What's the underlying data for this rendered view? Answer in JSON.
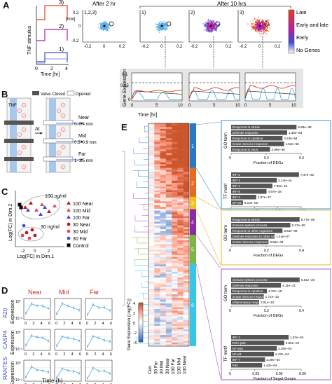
{
  "panels": {
    "A": "A",
    "B": "B",
    "C": "C",
    "D": "D",
    "E": "E"
  },
  "A": {
    "stim_ylabel": "TNF stimulus",
    "stim_xlabel": "Time [hr]",
    "stim_ticks": [
      "0",
      "2",
      "4"
    ],
    "stim_levels": [
      "3)",
      "2)",
      "1)"
    ],
    "after2": "After 2 hr",
    "after10": "After 10 hrs",
    "sc_labels": [
      "1,2,3)",
      "1)",
      "2)",
      "3)"
    ],
    "sc_yunit": "[mm]",
    "sc_xticks": [
      "-0.2",
      "0",
      "0.2"
    ],
    "sc_yticks": [
      "0.2",
      "0",
      "-0.2"
    ],
    "colorbar": [
      "Late",
      "Early and late",
      "Early",
      "No Genes"
    ],
    "ge_ylabel": "Gene Expression",
    "ge_xlabel": "Time [hr]",
    "ge_ticks": [
      "0",
      "5",
      "10"
    ],
    "ge_yticks": [
      "0.1",
      "0.05",
      "0"
    ]
  },
  "B": {
    "legend": [
      "Valve Closed",
      "Opened"
    ],
    "tnf": "TNF",
    "dt": "Δt",
    "near": "Near",
    "near_r": "0–0.4 mm",
    "mid": "Mid",
    "mid_r": "0.5–0.9 mm",
    "far": "Far",
    "far_r": "1–1.5 mm"
  },
  "C": {
    "ylabel": "Log(FC) in Dim.2",
    "xlabel": "Log(FC) in Dim.1",
    "ann100": "100 ng/ml",
    "ann30": "30 ng/ml",
    "ticks": [
      "-2",
      "0",
      "2"
    ],
    "legend": [
      "100 Near",
      "100 Mid",
      "100 Far",
      "30 Near",
      "30 Mid",
      "30 Far",
      "Control"
    ]
  },
  "D": {
    "cols": [
      "Near",
      "Mid",
      "Far"
    ],
    "genes": [
      "A20",
      "CASP4",
      "RANTES"
    ],
    "ylabel": "Expression",
    "xlabel": "Time (h)",
    "xticks": [
      "0",
      "2",
      "4",
      "6"
    ],
    "yticks": [
      "10⁻²",
      "10⁻¹",
      "10⁰"
    ]
  },
  "E": {
    "cb_label": "Gene Expression (Log(FC))",
    "cb_ticks": [
      "4",
      "2",
      "0",
      "-2",
      "-4"
    ],
    "cols": [
      "Con",
      "30 Far",
      "30 Mid",
      "30 Near",
      "100 Far",
      "100 Mid",
      "100 Near"
    ],
    "clusters": [
      "1",
      "2",
      "3",
      "4",
      "5",
      "6"
    ],
    "go_term": "GO term",
    "tf_motif": "TF motif",
    "frac_degs": "Fraction of DEGs",
    "frac_targets": "Fraction of Target Genes",
    "box1_go": [
      [
        "Response to stress",
        "5.88e−39"
      ],
      [
        "Defense response",
        "1.30e−63"
      ],
      [
        "Response to cytokine",
        "3.24e−54"
      ],
      [
        "Innate immune response",
        "1.53e−56"
      ],
      [
        "Response to virus",
        "2.99e−36"
      ]
    ],
    "box1_go_ticks": [
      "0",
      "0.2",
      "0.4"
    ],
    "box1_tf": [
      [
        "IRF-2",
        "7.47e−32"
      ],
      [
        "IRF-2",
        "2.13e−44"
      ],
      [
        "IRF-1",
        "7.86e−43"
      ],
      [
        "IRF-8",
        "4.67e−38"
      ],
      [
        "IRF-2",
        "2.87e−27"
      ],
      [
        "NF-κB",
        "5.10e−06"
      ]
    ],
    "box1_tf_ticks": [
      "0",
      "0.03",
      "0.06",
      "0.09"
    ],
    "box2_go": [
      [
        "Response to stress",
        "6.77e−06"
      ],
      [
        "Immune system process",
        "6.17e−06"
      ],
      [
        "Response to other organism",
        "8.62e−09"
      ],
      [
        "Defense response to other organism",
        "1.44e−07"
      ],
      [
        "Innate immune response",
        "8.86e−04"
      ]
    ],
    "box2_go_ticks": [
      "0",
      "0.2",
      "0.4"
    ],
    "box3_go": [
      [
        "Immune system process",
        "6.61e−26"
      ],
      [
        "Defense response",
        "4.11e−21"
      ],
      [
        "Response to cytokine",
        "4.37e−15"
      ],
      [
        "Innate immune response",
        "1.71e−13"
      ],
      [
        "Inflammatory response",
        "2.51e−10"
      ]
    ],
    "box3_go_ticks": [
      "0",
      "0.2",
      "0.4"
    ],
    "box3_tf": [
      [
        "IRF-2",
        "1.87e−04"
      ],
      [
        "RelA-p65",
        "2.82e−04"
      ],
      [
        "NF-κB2",
        "2.40e−04"
      ],
      [
        "NF-κB",
        "2.47e−04"
      ],
      [
        "IRF-7",
        "3.29e−04"
      ],
      [
        "P50",
        "1.42e−04"
      ]
    ],
    "box3_tf_ticks": [
      "0",
      "0.03",
      "0.06",
      "0.09"
    ]
  },
  "colors": {
    "late": "#e53d1a",
    "early": "#3b4fcf",
    "nogene": "#5aaee0",
    "magenta": "#b81ea8",
    "c1": "#2a78c8",
    "c2": "#e66a22",
    "c3": "#f2c11e",
    "c4": "#8a2aa8",
    "c5": "#7bb642",
    "c6": "#35c6e8",
    "boxblue": "#3d8fd0",
    "boxyellow": "#e8b92c",
    "boxpurple": "#a85cc0"
  }
}
